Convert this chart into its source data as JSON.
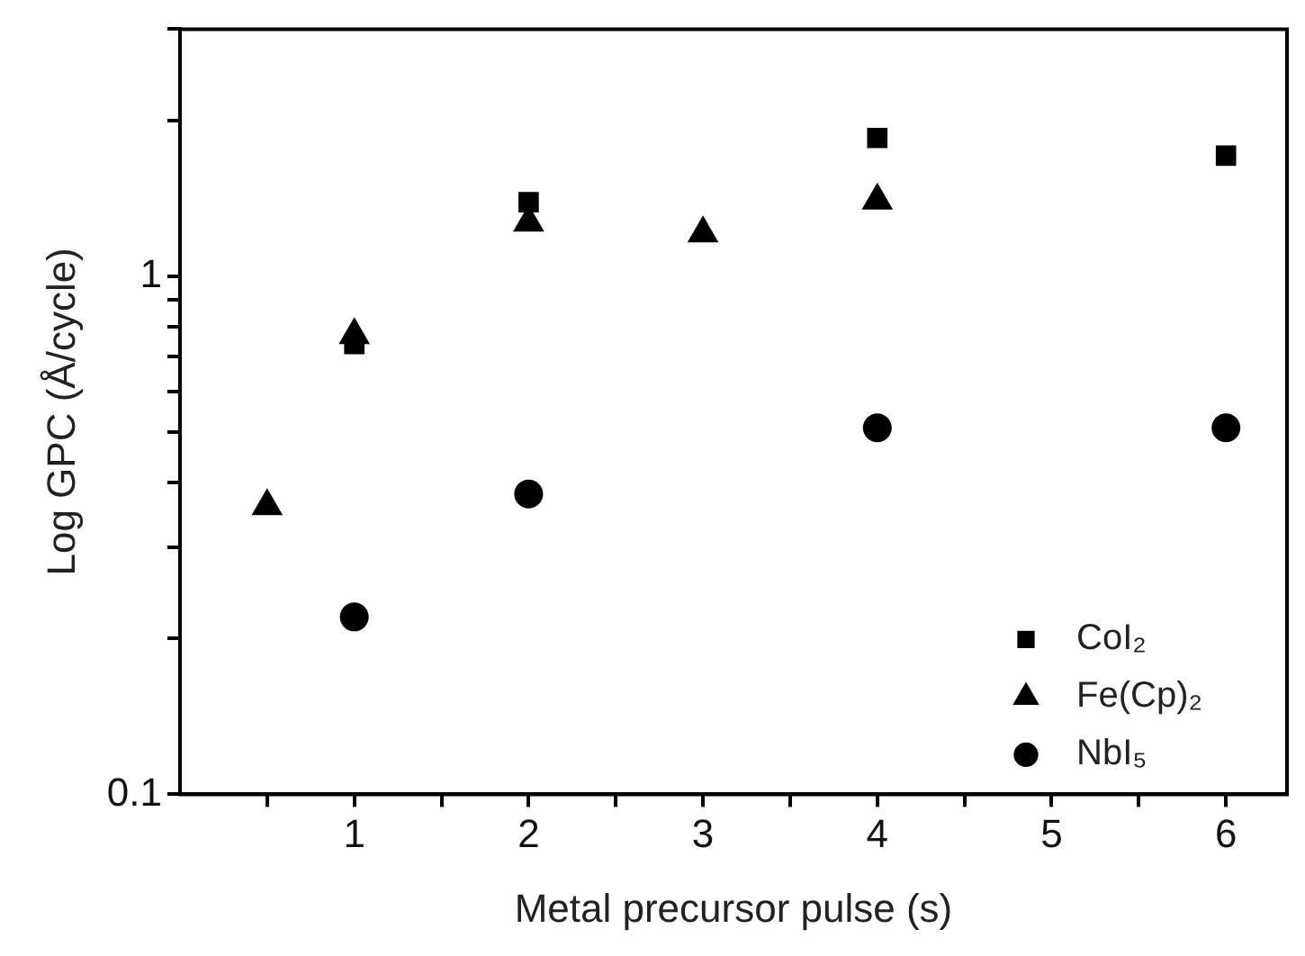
{
  "chart_data": {
    "type": "scatter",
    "xlabel": "Metal precursor pulse (s)",
    "ylabel": "Log GPC (Å/cycle)",
    "log": "y",
    "grid": false,
    "legend": "bottom right",
    "xlim": [
      0,
      6.35
    ],
    "xticks": [
      {
        "value": 0.5,
        "label": null
      },
      1,
      {
        "value": 1.5,
        "label": null
      },
      2,
      {
        "value": 2.5,
        "label": null
      },
      3,
      {
        "value": 3.5,
        "label": null
      },
      4,
      {
        "value": 4.5,
        "label": null
      },
      5,
      {
        "value": 5.5,
        "label": null
      },
      6
    ],
    "ylim": [
      0.1,
      3
    ],
    "yticks": [
      0.1,
      {
        "value": 0.2,
        "label": null
      },
      {
        "value": 0.3,
        "label": null
      },
      {
        "value": 0.4,
        "label": null
      },
      {
        "value": 0.5,
        "label": null
      },
      {
        "value": 0.6,
        "label": null
      },
      {
        "value": 0.7,
        "label": null
      },
      {
        "value": 0.8,
        "label": null
      },
      {
        "value": 0.9,
        "label": null
      },
      1,
      {
        "value": 2,
        "label": null
      },
      {
        "value": 3,
        "label": null
      }
    ],
    "series": [
      {
        "name": "CoI₂",
        "color": "#000000",
        "marker": "square",
        "x": [
          1,
          2,
          4,
          6
        ],
        "values": [
          0.74,
          1.39,
          1.85,
          1.71
        ]
      },
      {
        "name": "Fe(Cp)₂",
        "color": "#000000",
        "marker": "triangle",
        "x": [
          0.5,
          1,
          2,
          3,
          4
        ],
        "values": [
          0.36,
          0.77,
          1.27,
          1.21,
          1.4
        ]
      },
      {
        "name": "NbI₅",
        "color": "#000000",
        "marker": "circle",
        "x": [
          1,
          2,
          4,
          6
        ],
        "values": [
          0.22,
          0.38,
          0.51,
          0.51
        ]
      }
    ]
  }
}
